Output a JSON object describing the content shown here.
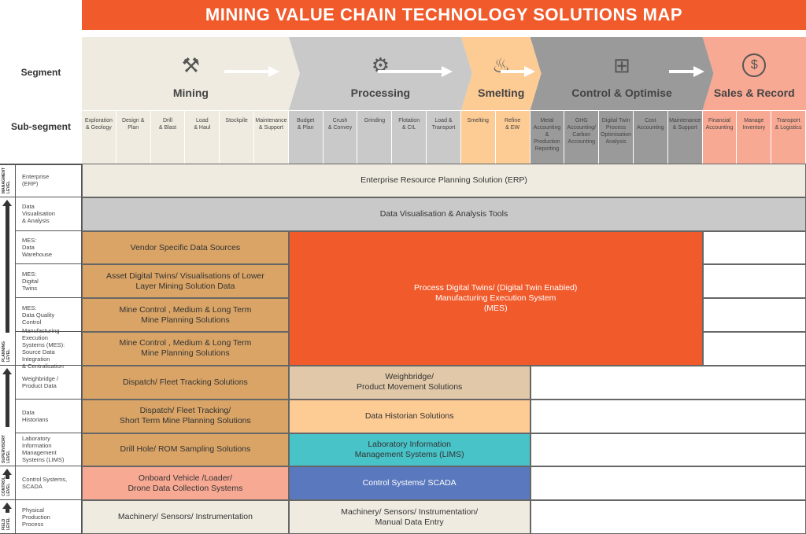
{
  "title": "MINING VALUE CHAIN TECHNOLOGY SOLUTIONS MAP",
  "labels": {
    "segment": "Segment",
    "subsegment": "Sub-segment"
  },
  "segments": [
    {
      "name": "Mining",
      "icon": "pickaxe-icon",
      "color": "#efebe0",
      "subs": [
        "Exploration\n& Geology",
        "Design &\nPlan",
        "Drill\n& Blast",
        "Load\n& Haul",
        "Stockpile",
        "Maintenance\n& Support"
      ]
    },
    {
      "name": "Processing",
      "icon": "gears-cycle-icon",
      "color": "#c9c9c9",
      "subs": [
        "Budget\n& Plan",
        "Crush\n& Convey",
        "Grinding",
        "Flotation\n& CIL",
        "Load &\nTransport"
      ]
    },
    {
      "name": "Smelting",
      "icon": "flame-icon",
      "color": "#fdcb94",
      "subs": [
        "Smelting",
        "Refine\n& EW"
      ]
    },
    {
      "name": "Control & Optimise",
      "icon": "flowchart-icon",
      "color": "#9a9a9a",
      "subs": [
        "Metal\nAccounting\n&\nProduction\nReporting",
        "GHG\nAccounting/\nCarbon\nAccounting",
        "Digital Twin\nProcess\nOptimisation\nAnalysis",
        "Cost\nAccounting",
        "Maintenance\n& Support"
      ]
    },
    {
      "name": "Sales & Record",
      "icon": "dollar-network-icon",
      "color": "#f7a993",
      "subs": [
        "Financial\nAccounting",
        "Manage\nInventory",
        "Transport\n& Logistics"
      ]
    }
  ],
  "row_labels": [
    "Enterprise\n(ERP)",
    "Data\nVisualisation\n& Analysis",
    "MES:\nData\nWarehouse",
    "MES:\nDigital\nTwins",
    "MES:\nData Quality\nControl",
    "Manufacturing Execution\nSystems (MES):\nSource Data Integration\n& Centralisation",
    "Weighbridge /\nProduct Data",
    "Data\nHistorians",
    "Laboratory\nInformation\nManagement\nSystems (LIMS)",
    "Control Systems,\nSCADA",
    "Physical\nProduction\nProcess"
  ],
  "levels": [
    "MANAGMENT\nLEVEL",
    "PLANNING\nLEVEL",
    "SUPERVISORY\nLEVEL",
    "CONTROL\nLEVEL",
    "FIELD\nLEVEL"
  ],
  "blocks": [
    {
      "text": "Enterprise Resource Planning Solution (ERP)",
      "color": "#efebe0"
    },
    {
      "text": "Data Visualisation & Analysis Tools",
      "color": "#c9c9c9"
    },
    {
      "text": "Vendor Specific Data Sources",
      "color": "#d9a466"
    },
    {
      "text": "Asset Digital Twins/ Visualisations of Lower\nLayer Mining Solution Data",
      "color": "#d9a466"
    },
    {
      "text": "Mine Control , Medium & Long Term\nMine Planning Solutions",
      "color": "#d9a466"
    },
    {
      "text": "Mine Control , Medium & Long Term\nMine Planning Solutions",
      "color": "#d9a466"
    },
    {
      "text": "Process Digital Twins/ (Digital Twin Enabled)\nManufacturing Execution System\n(MES)",
      "color": "#f15a2b"
    },
    {
      "text": "Dispatch/ Fleet Tracking Solutions",
      "color": "#d9a466"
    },
    {
      "text": "Weighbridge/\nProduct Movement Solutions",
      "color": "#e0c8a8"
    },
    {
      "text": "Dispatch/ Fleet Tracking/\nShort Term Mine Planning Solutions",
      "color": "#d9a466"
    },
    {
      "text": "Data Historian Solutions",
      "color": "#fdcb94"
    },
    {
      "text": "Drill Hole/ ROM Sampling Solutions",
      "color": "#d9a466"
    },
    {
      "text": "Laboratory Information\nManagement Systems (LIMS)",
      "color": "#48c3c8"
    },
    {
      "text": "Onboard Vehicle /Loader/\nDrone Data Collection Systems",
      "color": "#f7a993"
    },
    {
      "text": "Control Systems/ SCADA",
      "color": "#5a78bd"
    },
    {
      "text": "Machinery/ Sensors/ Instrumentation",
      "color": "#efebe0"
    },
    {
      "text": "Machinery/ Sensors/ Instrumentation/\nManual Data Entry",
      "color": "#efebe0"
    }
  ]
}
